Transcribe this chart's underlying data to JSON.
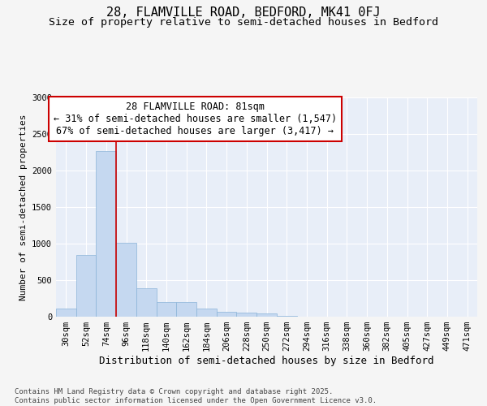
{
  "title": "28, FLAMVILLE ROAD, BEDFORD, MK41 0FJ",
  "subtitle": "Size of property relative to semi-detached houses in Bedford",
  "xlabel": "Distribution of semi-detached houses by size in Bedford",
  "ylabel": "Number of semi-detached properties",
  "categories": [
    "30sqm",
    "52sqm",
    "74sqm",
    "96sqm",
    "118sqm",
    "140sqm",
    "162sqm",
    "184sqm",
    "206sqm",
    "228sqm",
    "250sqm",
    "272sqm",
    "294sqm",
    "316sqm",
    "338sqm",
    "360sqm",
    "382sqm",
    "405sqm",
    "427sqm",
    "449sqm",
    "471sqm"
  ],
  "values": [
    110,
    850,
    2270,
    1010,
    390,
    200,
    200,
    110,
    70,
    55,
    40,
    10,
    5,
    3,
    2,
    1,
    1,
    1,
    1,
    1,
    1
  ],
  "bar_color": "#c5d8f0",
  "bar_edge_color": "#8ab4d8",
  "background_color": "#e8eef8",
  "grid_color": "#ffffff",
  "annotation_box_color": "#ffffff",
  "annotation_border_color": "#cc0000",
  "property_line_color": "#cc0000",
  "property_bin_index": 2,
  "annotation_title": "28 FLAMVILLE ROAD: 81sqm",
  "annotation_line1": "← 31% of semi-detached houses are smaller (1,547)",
  "annotation_line2": "67% of semi-detached houses are larger (3,417) →",
  "footer_line1": "Contains HM Land Registry data © Crown copyright and database right 2025.",
  "footer_line2": "Contains public sector information licensed under the Open Government Licence v3.0.",
  "ylim": [
    0,
    3000
  ],
  "fig_bg": "#f5f5f5",
  "title_fontsize": 11,
  "subtitle_fontsize": 9.5,
  "xlabel_fontsize": 9,
  "ylabel_fontsize": 8,
  "tick_fontsize": 7.5,
  "annotation_fontsize": 8.5,
  "footer_fontsize": 6.5
}
